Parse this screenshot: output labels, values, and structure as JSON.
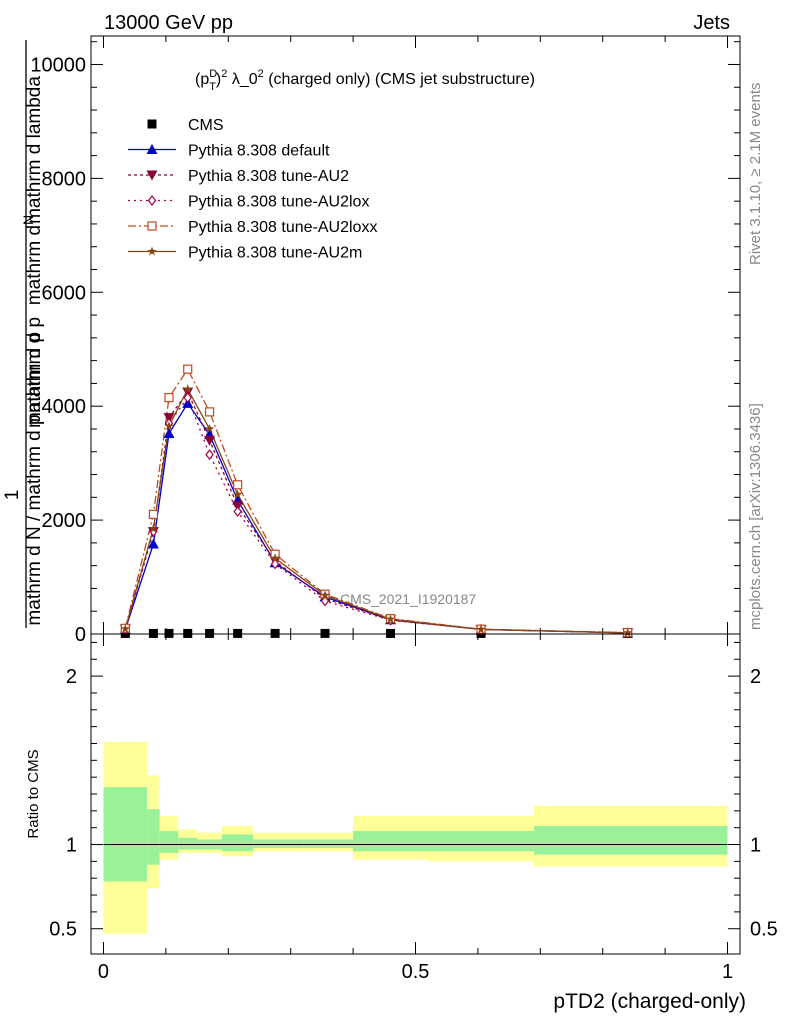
{
  "header": {
    "left": "13000 GeV pp",
    "right": "Jets"
  },
  "side": {
    "rivet": "Rivet 3.1.10, ≥ 2.1M events",
    "mcplots": "mcplots.cern.ch [arXiv:1306.3436]"
  },
  "chart_data": [
    {
      "type": "line",
      "title": "(p_T^D)^2 λ_0^2 (charged only) (CMS jet substructure)",
      "title_parts": {
        "a": "(p",
        "sup1": "D",
        "sub1": "T",
        "b": ")",
        "sup2": "2",
        "c": " λ_0",
        "sup3": "2",
        "d": " (charged only) (CMS jet substructure)"
      },
      "ylabel": {
        "one": "1",
        "line1": "mathrm d N / mathrm d p",
        "line2": "mathrm d p",
        "line2b": "mathrm d lambda",
        "top": "mathrm d",
        "top2": "N",
        "top_sub": "T",
        "mid_sub": "T",
        "mid": "mathrm d p",
        "mid2": "mathrm d lambda"
      },
      "ylabel_text": {
        "num_a": "mathrm d",
        "num_b": "N",
        "num_c": "mathrm d p",
        "num_d": "mathrm d lambda",
        "T": "T",
        "one": "1",
        "den_a": "mathrm d N / mathrm d p",
        "den_b": "mathrm d p",
        "den_c": "mathrm d lambda"
      },
      "ylim": [
        0,
        10500
      ],
      "xlim": [
        -0.02,
        1.02
      ],
      "yticks": [
        0,
        2000,
        4000,
        6000,
        8000,
        10000
      ],
      "ytick_labels": [
        "0",
        "2000",
        "4000",
        "6000",
        "8000",
        "10000"
      ],
      "watermark": "CMS_2021_I1920187",
      "x": [
        0.035,
        0.08,
        0.105,
        0.135,
        0.17,
        0.215,
        0.275,
        0.355,
        0.46,
        0.605,
        0.84
      ],
      "series": [
        {
          "name": "CMS",
          "color": "#000000",
          "marker": "square",
          "dash": "none",
          "values": [
            10,
            10,
            10,
            10,
            10,
            10,
            10,
            10,
            10,
            10,
            10
          ]
        },
        {
          "name": "Pythia 8.308 default",
          "color": "#0000cc",
          "marker": "triangle-up",
          "dash": "none",
          "values": [
            80,
            1580,
            3520,
            4050,
            3500,
            2350,
            1250,
            650,
            250,
            80,
            20
          ]
        },
        {
          "name": "Pythia 8.308 tune-AU2",
          "color": "#8b0037",
          "marker": "triangle-down",
          "dash": "3,3",
          "values": [
            85,
            1800,
            3800,
            4250,
            3400,
            2250,
            1280,
            620,
            250,
            80,
            20
          ]
        },
        {
          "name": "Pythia 8.308 tune-AU2lox",
          "color": "#a4004e",
          "marker": "diamond-open",
          "dash": "2,4",
          "values": [
            85,
            1800,
            3700,
            4150,
            3150,
            2150,
            1230,
            580,
            240,
            80,
            20
          ]
        },
        {
          "name": "Pythia 8.308 tune-AU2loxx",
          "color": "#c04a1a",
          "marker": "square-open",
          "dash": "8,3,2,3",
          "values": [
            100,
            2100,
            4150,
            4650,
            3900,
            2620,
            1400,
            700,
            270,
            85,
            25
          ]
        },
        {
          "name": "Pythia 8.308 tune-AU2m",
          "color": "#8b4513",
          "marker": "star",
          "dash": "none",
          "values": [
            90,
            1850,
            3650,
            4300,
            3600,
            2450,
            1330,
            680,
            260,
            80,
            20
          ]
        }
      ]
    },
    {
      "type": "area",
      "ylabel": "Ratio to CMS",
      "xlabel": "pTD2 (charged-only)",
      "ylim": [
        0.35,
        2.25
      ],
      "xlim": [
        -0.02,
        1.02
      ],
      "yticks": [
        0.5,
        1,
        2
      ],
      "ytick_labels": [
        "0.5",
        "1",
        "2"
      ],
      "xticks": [
        0,
        0.5,
        1
      ],
      "xtick_labels": [
        "0",
        "0.5",
        "1"
      ],
      "bins": [
        {
          "lo": 0.0,
          "hi": 0.07,
          "inner": [
            0.78,
            1.34
          ],
          "outer": [
            0.47,
            1.61
          ]
        },
        {
          "lo": 0.07,
          "hi": 0.09,
          "inner": [
            0.88,
            1.21
          ],
          "outer": [
            0.74,
            1.41
          ]
        },
        {
          "lo": 0.09,
          "hi": 0.12,
          "inner": [
            0.95,
            1.08
          ],
          "outer": [
            0.91,
            1.17
          ]
        },
        {
          "lo": 0.12,
          "hi": 0.15,
          "inner": [
            0.97,
            1.04
          ],
          "outer": [
            0.95,
            1.09
          ]
        },
        {
          "lo": 0.15,
          "hi": 0.19,
          "inner": [
            0.97,
            1.03
          ],
          "outer": [
            0.95,
            1.07
          ]
        },
        {
          "lo": 0.19,
          "hi": 0.24,
          "inner": [
            0.96,
            1.06
          ],
          "outer": [
            0.93,
            1.11
          ]
        },
        {
          "lo": 0.24,
          "hi": 0.32,
          "inner": [
            0.98,
            1.03
          ],
          "outer": [
            0.96,
            1.07
          ]
        },
        {
          "lo": 0.32,
          "hi": 0.4,
          "inner": [
            0.98,
            1.03
          ],
          "outer": [
            0.96,
            1.07
          ]
        },
        {
          "lo": 0.4,
          "hi": 0.52,
          "inner": [
            0.96,
            1.08
          ],
          "outer": [
            0.91,
            1.17
          ]
        },
        {
          "lo": 0.52,
          "hi": 0.69,
          "inner": [
            0.96,
            1.08
          ],
          "outer": [
            0.9,
            1.17
          ]
        },
        {
          "lo": 0.69,
          "hi": 1.0,
          "inner": [
            0.94,
            1.11
          ],
          "outer": [
            0.87,
            1.23
          ]
        }
      ],
      "colors": {
        "inner": "#99f299",
        "outer": "#ffff99"
      }
    }
  ]
}
